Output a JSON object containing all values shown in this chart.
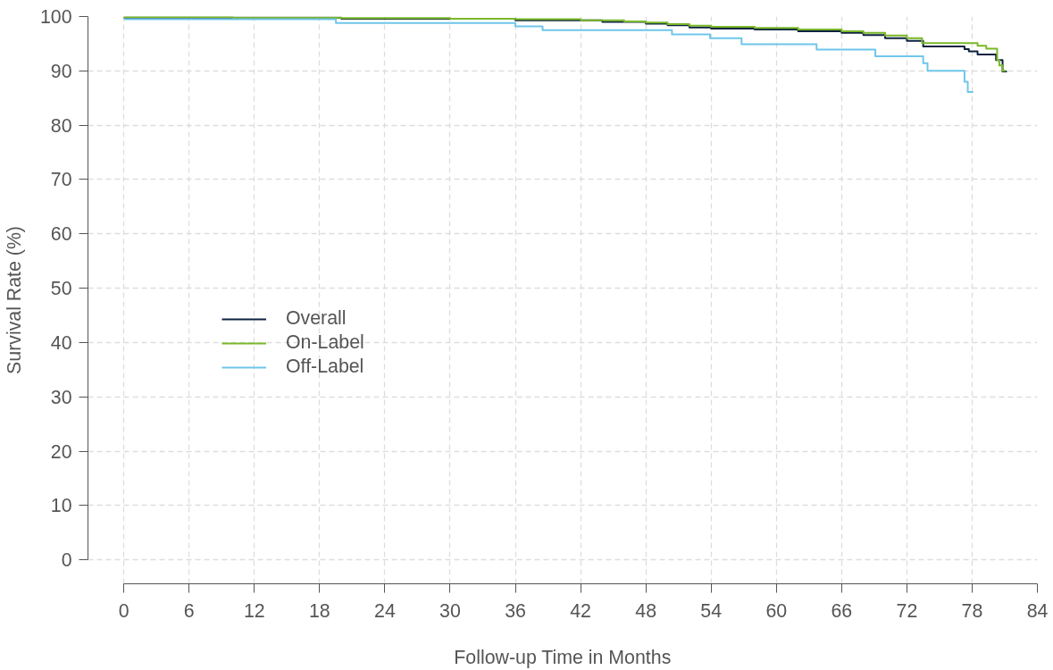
{
  "chart_data": {
    "type": "step",
    "xlabel": "Follow-up Time in Months",
    "ylabel": "Survival Rate (%)",
    "xlim": [
      -3.3,
      84
    ],
    "ylim": [
      -4.4,
      100
    ],
    "xticks": [
      0,
      6,
      12,
      18,
      24,
      30,
      36,
      42,
      48,
      54,
      60,
      66,
      72,
      78,
      84
    ],
    "yticks": [
      0,
      10,
      20,
      30,
      40,
      50,
      60,
      70,
      80,
      90,
      100
    ],
    "grid": true,
    "legend": "left",
    "line_style": "solid",
    "marker": "none",
    "series": [
      {
        "name": "Overall",
        "color": "#0d2240",
        "x": [
          0,
          20,
          36,
          44,
          48,
          50,
          52,
          54,
          58,
          62,
          66,
          68,
          70,
          72,
          73.5,
          77.3,
          77.7,
          78.5,
          80.2,
          80.8,
          81.2
        ],
        "values": [
          99.8,
          99.6,
          99.3,
          99.0,
          98.7,
          98.4,
          98.0,
          97.8,
          97.6,
          97.3,
          97.0,
          96.6,
          96.0,
          95.5,
          94.5,
          94.0,
          93.6,
          93.0,
          92.0,
          89.9,
          89.9
        ]
      },
      {
        "name": "On-Label",
        "color": "#7ab829",
        "x": [
          0,
          10,
          20,
          30,
          36,
          42,
          46,
          48,
          50,
          52,
          54,
          58,
          62,
          66,
          68,
          70,
          72,
          73.4,
          78.5,
          79.3,
          80.3,
          80.5,
          80.8,
          81.1
        ],
        "values": [
          99.9,
          99.8,
          99.7,
          99.6,
          99.5,
          99.3,
          99.1,
          98.9,
          98.6,
          98.3,
          98.1,
          97.9,
          97.6,
          97.3,
          97.0,
          96.5,
          96.0,
          95.1,
          94.6,
          94.1,
          92.0,
          91.0,
          90.0,
          90.0
        ]
      },
      {
        "name": "Off-Label",
        "color": "#6ec6ea",
        "x": [
          0,
          19.5,
          36,
          38.5,
          50.4,
          53.9,
          56.8,
          63.7,
          69.1,
          73.5,
          73.9,
          77.3,
          77.6,
          78.1
        ],
        "values": [
          99.5,
          98.8,
          98.2,
          97.5,
          96.7,
          96.0,
          94.9,
          93.9,
          92.7,
          91.4,
          90.0,
          88.0,
          86.1,
          86.1
        ]
      }
    ]
  }
}
